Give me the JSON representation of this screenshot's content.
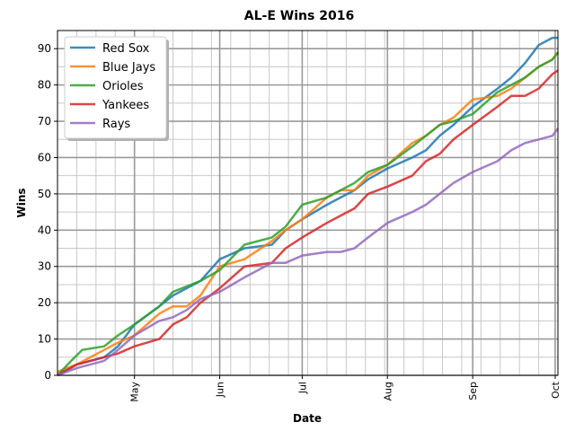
{
  "chart_data": {
    "type": "line",
    "title": "AL-E Wins 2016",
    "xlabel": "Date",
    "ylabel": "Wins",
    "x_range": [
      "2016-04-03",
      "2016-10-02"
    ],
    "ylim": [
      0,
      95
    ],
    "x_ticks": [
      {
        "date": "2016-05-01",
        "label": "May"
      },
      {
        "date": "2016-06-01",
        "label": "Jun"
      },
      {
        "date": "2016-07-01",
        "label": "Jul"
      },
      {
        "date": "2016-08-01",
        "label": "Aug"
      },
      {
        "date": "2016-09-01",
        "label": "Sep"
      },
      {
        "date": "2016-10-01",
        "label": "Oct"
      }
    ],
    "y_ticks": [
      0,
      10,
      20,
      30,
      40,
      50,
      60,
      70,
      80,
      90
    ],
    "grid": true,
    "legend_position": "top-left",
    "series": [
      {
        "name": "Red Sox",
        "color": "#1f77b4",
        "points": [
          [
            "2016-04-03",
            0
          ],
          [
            "2016-04-10",
            3
          ],
          [
            "2016-04-20",
            5
          ],
          [
            "2016-04-25",
            8
          ],
          [
            "2016-05-01",
            14
          ],
          [
            "2016-05-10",
            19
          ],
          [
            "2016-05-15",
            22
          ],
          [
            "2016-05-20",
            24
          ],
          [
            "2016-05-25",
            26
          ],
          [
            "2016-06-01",
            32
          ],
          [
            "2016-06-10",
            35
          ],
          [
            "2016-06-20",
            36
          ],
          [
            "2016-06-25",
            40
          ],
          [
            "2016-07-01",
            43
          ],
          [
            "2016-07-10",
            47
          ],
          [
            "2016-07-15",
            49
          ],
          [
            "2016-07-20",
            51
          ],
          [
            "2016-07-25",
            54
          ],
          [
            "2016-08-01",
            57
          ],
          [
            "2016-08-10",
            60
          ],
          [
            "2016-08-15",
            62
          ],
          [
            "2016-08-20",
            66
          ],
          [
            "2016-08-25",
            69
          ],
          [
            "2016-09-01",
            74
          ],
          [
            "2016-09-10",
            79
          ],
          [
            "2016-09-15",
            82
          ],
          [
            "2016-09-20",
            86
          ],
          [
            "2016-09-25",
            91
          ],
          [
            "2016-09-30",
            93
          ],
          [
            "2016-10-02",
            93
          ]
        ]
      },
      {
        "name": "Blue Jays",
        "color": "#ff7f0e",
        "points": [
          [
            "2016-04-03",
            1
          ],
          [
            "2016-04-10",
            3
          ],
          [
            "2016-04-20",
            7
          ],
          [
            "2016-04-25",
            9
          ],
          [
            "2016-05-01",
            11
          ],
          [
            "2016-05-10",
            17
          ],
          [
            "2016-05-15",
            19
          ],
          [
            "2016-05-20",
            19
          ],
          [
            "2016-05-25",
            22
          ],
          [
            "2016-06-01",
            30
          ],
          [
            "2016-06-10",
            32
          ],
          [
            "2016-06-20",
            37
          ],
          [
            "2016-06-25",
            40
          ],
          [
            "2016-07-01",
            43
          ],
          [
            "2016-07-10",
            49
          ],
          [
            "2016-07-15",
            51
          ],
          [
            "2016-07-20",
            51
          ],
          [
            "2016-07-25",
            55
          ],
          [
            "2016-08-01",
            58
          ],
          [
            "2016-08-10",
            64
          ],
          [
            "2016-08-15",
            66
          ],
          [
            "2016-08-20",
            69
          ],
          [
            "2016-08-25",
            71
          ],
          [
            "2016-09-01",
            76
          ],
          [
            "2016-09-10",
            77
          ],
          [
            "2016-09-15",
            79
          ],
          [
            "2016-09-20",
            82
          ],
          [
            "2016-09-25",
            85
          ],
          [
            "2016-09-30",
            87
          ],
          [
            "2016-10-02",
            89
          ]
        ]
      },
      {
        "name": "Orioles",
        "color": "#2ca02c",
        "points": [
          [
            "2016-04-03",
            0
          ],
          [
            "2016-04-08",
            4
          ],
          [
            "2016-04-12",
            7
          ],
          [
            "2016-04-20",
            8
          ],
          [
            "2016-04-25",
            11
          ],
          [
            "2016-05-01",
            14
          ],
          [
            "2016-05-10",
            19
          ],
          [
            "2016-05-15",
            23
          ],
          [
            "2016-05-25",
            26
          ],
          [
            "2016-06-01",
            29
          ],
          [
            "2016-06-10",
            36
          ],
          [
            "2016-06-20",
            38
          ],
          [
            "2016-06-25",
            41
          ],
          [
            "2016-07-01",
            47
          ],
          [
            "2016-07-10",
            49
          ],
          [
            "2016-07-15",
            51
          ],
          [
            "2016-07-20",
            53
          ],
          [
            "2016-07-25",
            56
          ],
          [
            "2016-08-01",
            58
          ],
          [
            "2016-08-10",
            63
          ],
          [
            "2016-08-15",
            66
          ],
          [
            "2016-08-20",
            69
          ],
          [
            "2016-08-25",
            70
          ],
          [
            "2016-09-01",
            72
          ],
          [
            "2016-09-10",
            78
          ],
          [
            "2016-09-15",
            80
          ],
          [
            "2016-09-20",
            82
          ],
          [
            "2016-09-25",
            85
          ],
          [
            "2016-09-30",
            87
          ],
          [
            "2016-10-02",
            89
          ]
        ]
      },
      {
        "name": "Yankees",
        "color": "#d62728",
        "points": [
          [
            "2016-04-03",
            0
          ],
          [
            "2016-04-10",
            3
          ],
          [
            "2016-04-20",
            5
          ],
          [
            "2016-04-25",
            6
          ],
          [
            "2016-05-01",
            8
          ],
          [
            "2016-05-10",
            10
          ],
          [
            "2016-05-15",
            14
          ],
          [
            "2016-05-20",
            16
          ],
          [
            "2016-05-25",
            20
          ],
          [
            "2016-06-01",
            24
          ],
          [
            "2016-06-10",
            30
          ],
          [
            "2016-06-20",
            31
          ],
          [
            "2016-06-25",
            35
          ],
          [
            "2016-07-01",
            38
          ],
          [
            "2016-07-10",
            42
          ],
          [
            "2016-07-15",
            44
          ],
          [
            "2016-07-20",
            46
          ],
          [
            "2016-07-25",
            50
          ],
          [
            "2016-08-01",
            52
          ],
          [
            "2016-08-10",
            55
          ],
          [
            "2016-08-15",
            59
          ],
          [
            "2016-08-20",
            61
          ],
          [
            "2016-08-25",
            65
          ],
          [
            "2016-09-01",
            69
          ],
          [
            "2016-09-10",
            74
          ],
          [
            "2016-09-15",
            77
          ],
          [
            "2016-09-20",
            77
          ],
          [
            "2016-09-25",
            79
          ],
          [
            "2016-09-30",
            83
          ],
          [
            "2016-10-02",
            84
          ]
        ]
      },
      {
        "name": "Rays",
        "color": "#9467bd",
        "points": [
          [
            "2016-04-03",
            0
          ],
          [
            "2016-04-10",
            2
          ],
          [
            "2016-04-20",
            4
          ],
          [
            "2016-04-25",
            7
          ],
          [
            "2016-05-01",
            11
          ],
          [
            "2016-05-10",
            15
          ],
          [
            "2016-05-15",
            16
          ],
          [
            "2016-05-20",
            18
          ],
          [
            "2016-05-25",
            21
          ],
          [
            "2016-06-01",
            23
          ],
          [
            "2016-06-10",
            27
          ],
          [
            "2016-06-20",
            31
          ],
          [
            "2016-06-25",
            31
          ],
          [
            "2016-07-01",
            33
          ],
          [
            "2016-07-10",
            34
          ],
          [
            "2016-07-15",
            34
          ],
          [
            "2016-07-20",
            35
          ],
          [
            "2016-07-25",
            38
          ],
          [
            "2016-08-01",
            42
          ],
          [
            "2016-08-10",
            45
          ],
          [
            "2016-08-15",
            47
          ],
          [
            "2016-08-20",
            50
          ],
          [
            "2016-08-25",
            53
          ],
          [
            "2016-09-01",
            56
          ],
          [
            "2016-09-10",
            59
          ],
          [
            "2016-09-15",
            62
          ],
          [
            "2016-09-20",
            64
          ],
          [
            "2016-09-25",
            65
          ],
          [
            "2016-09-30",
            66
          ],
          [
            "2016-10-02",
            68
          ]
        ]
      }
    ]
  }
}
